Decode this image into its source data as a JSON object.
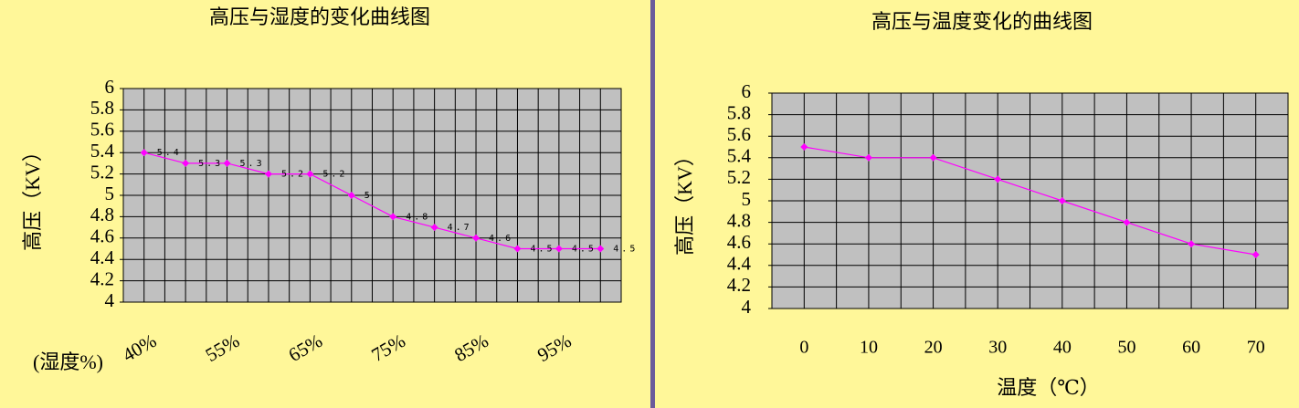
{
  "chart_data": [
    {
      "type": "line",
      "title": "高压与湿度的变化曲线图",
      "y_label": "高压（KV）",
      "x_label": "(湿度%)",
      "categories": [
        "40%",
        null,
        "55%",
        null,
        "65%",
        null,
        "75%",
        null,
        "85%",
        null,
        "95%",
        null
      ],
      "series": [
        {
          "color": "#ff00ff",
          "values": [
            5.4,
            5.3,
            5.3,
            5.2,
            5.2,
            5,
            4.8,
            4.7,
            4.6,
            4.5,
            4.5,
            4.5
          ]
        }
      ],
      "ylim": [
        4,
        6
      ],
      "yticks": [
        4,
        4.2,
        4.4,
        4.6,
        4.8,
        5,
        5.2,
        5.4,
        5.6,
        5.8,
        6
      ],
      "grid": true,
      "data_labels": true
    },
    {
      "type": "line",
      "title": "高压与温度变化的曲线图",
      "y_label": "高压（KV）",
      "x_label": "温度（℃）",
      "x": [
        0,
        10,
        20,
        30,
        40,
        50,
        60,
        70
      ],
      "series": [
        {
          "color": "#ff00ff",
          "values": [
            5.5,
            5.4,
            5.4,
            5.2,
            5,
            4.8,
            4.6,
            4.5
          ]
        }
      ],
      "xlim": [
        -5,
        75
      ],
      "xticks": [
        0,
        10,
        20,
        30,
        40,
        50,
        60,
        70
      ],
      "ylim": [
        4,
        6
      ],
      "yticks": [
        4,
        4.2,
        4.4,
        4.6,
        4.8,
        5,
        5.2,
        5.4,
        5.6,
        5.8,
        6
      ],
      "grid": true,
      "data_labels": false
    }
  ]
}
